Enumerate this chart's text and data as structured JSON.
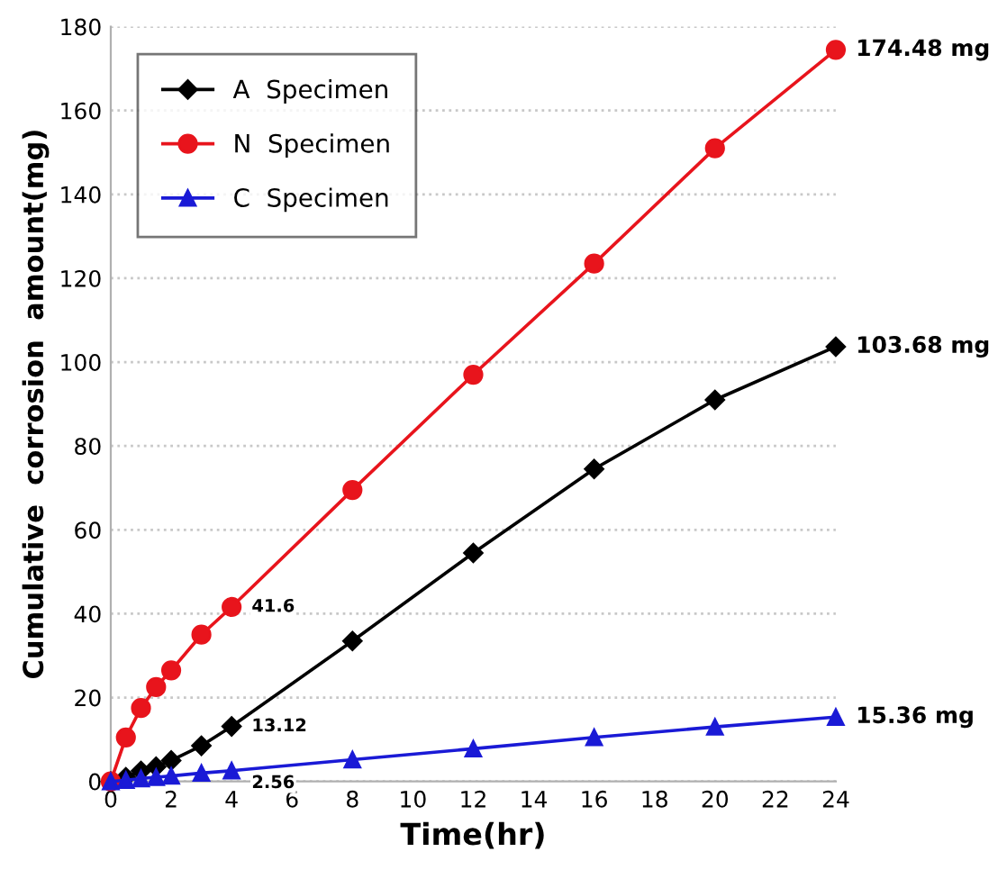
{
  "chart_data": {
    "type": "line",
    "xlabel": "Time(hr)",
    "ylabel": "Cumulative  corrosion  amount(mg)",
    "x": [
      0,
      0.5,
      1,
      1.5,
      2,
      3,
      4,
      8,
      12,
      16,
      20,
      24
    ],
    "series": [
      {
        "name": "A  Specimen",
        "color": "#000000",
        "marker": "diamond",
        "values": [
          0,
          1,
          2.5,
          3.5,
          5,
          8.5,
          13.12,
          33.5,
          54.5,
          74.5,
          91,
          103.68
        ],
        "value_labels": [
          null,
          null,
          null,
          null,
          null,
          null,
          "13.12",
          null,
          null,
          null,
          null,
          "103.68 mg"
        ]
      },
      {
        "name": "N  Specimen",
        "color": "#e8141c",
        "marker": "circle",
        "values": [
          0,
          10.5,
          17.5,
          22.5,
          26.5,
          35,
          41.6,
          69.5,
          97,
          123.5,
          151,
          174.48
        ],
        "value_labels": [
          null,
          null,
          null,
          null,
          null,
          null,
          "41.6",
          null,
          null,
          null,
          null,
          "174.48 mg"
        ]
      },
      {
        "name": "C  Specimen",
        "color": "#1a1ad6",
        "marker": "triangle",
        "values": [
          0,
          0.3,
          0.7,
          1.0,
          1.3,
          2,
          2.56,
          5.2,
          7.8,
          10.5,
          13,
          15.36
        ],
        "value_labels": [
          null,
          null,
          null,
          null,
          null,
          null,
          "2.56",
          null,
          null,
          null,
          null,
          "15.36 mg"
        ]
      }
    ],
    "xlim": [
      0,
      24
    ],
    "xticks": [
      0,
      2,
      4,
      6,
      8,
      10,
      12,
      14,
      16,
      18,
      20,
      22,
      24
    ],
    "ylim": [
      0,
      180
    ],
    "yticks": [
      0,
      20,
      40,
      60,
      80,
      100,
      120,
      140,
      160,
      180
    ],
    "grid": "y",
    "legend": "top left",
    "line_style": "solid"
  }
}
